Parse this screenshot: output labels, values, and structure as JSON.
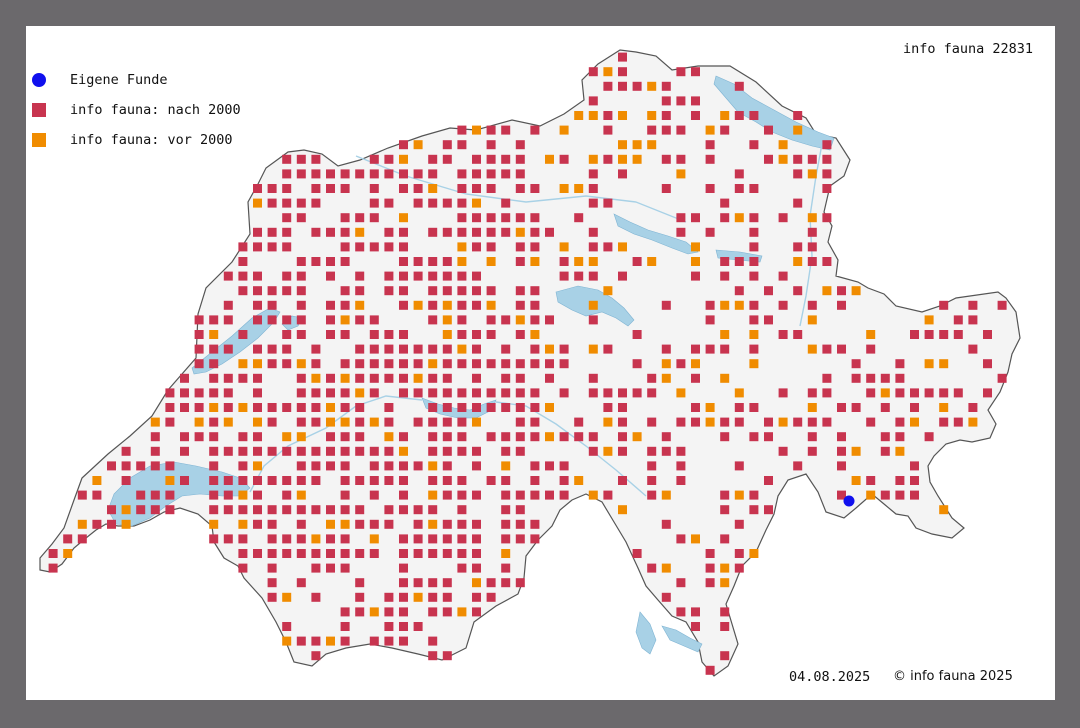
{
  "title": "info fauna 22831",
  "legend": [
    {
      "label": "Eigene Funde",
      "color": "#1010ee",
      "shape": "circle"
    },
    {
      "label": "info fauna: nach 2000",
      "color": "#c8344f",
      "shape": "square"
    },
    {
      "label": "info fauna: vor 2000",
      "color": "#f08c00",
      "shape": "square"
    }
  ],
  "date": "04.08.2025",
  "copyright": "© info fauna 2025",
  "colors": {
    "background": "#6b696c",
    "land": "#f4f4f4",
    "border": "#555555",
    "water": "#a8d1e6"
  }
}
